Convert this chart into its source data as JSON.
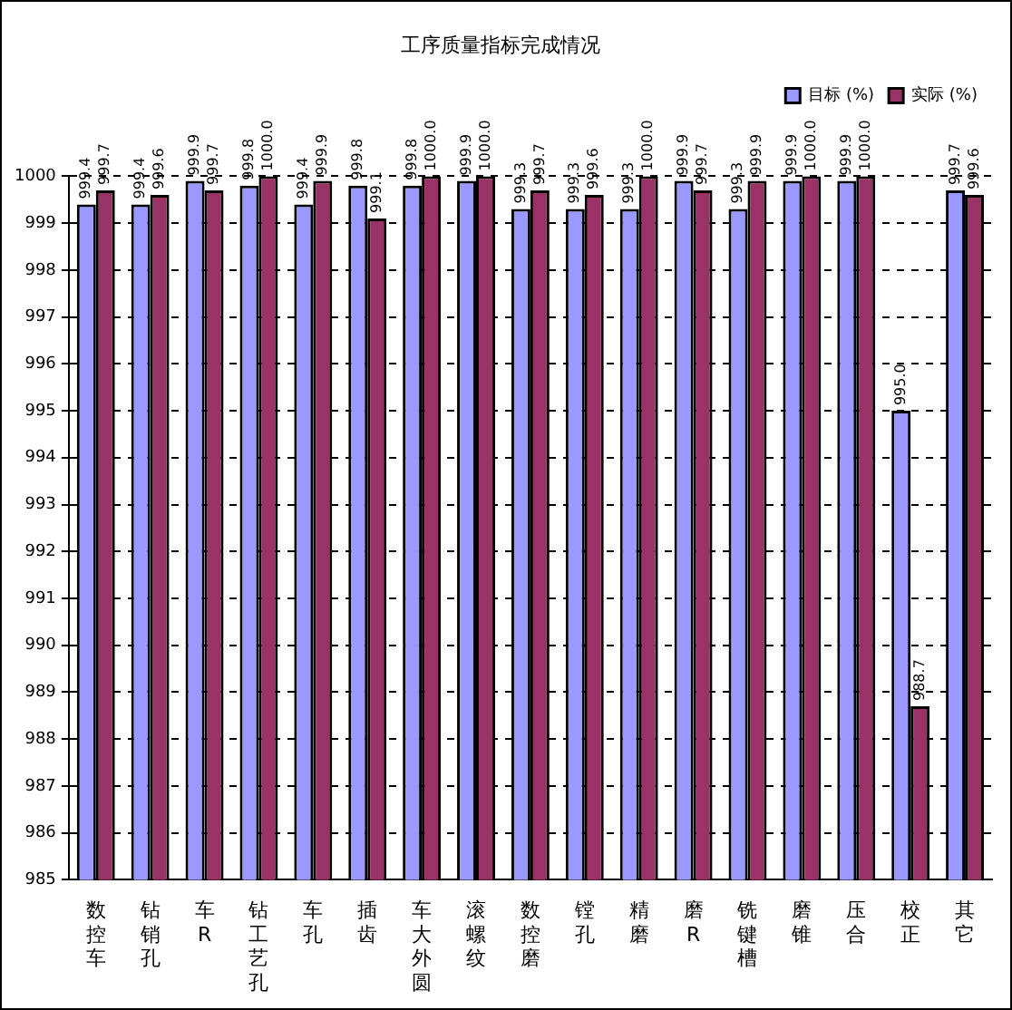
{
  "chart_data": {
    "type": "bar",
    "title": "工序质量指标完成情况",
    "categories": [
      "数控车",
      "钻销孔",
      "车R",
      "钻工艺孔",
      "车孔",
      "插齿",
      "车大外圆",
      "滚螺纹",
      "数控磨",
      "镗孔",
      "精磨",
      "磨R",
      "铣键槽",
      "磨锥",
      "压合",
      "校正",
      "其它"
    ],
    "series": [
      {
        "name": "目标 (%)",
        "color": "#9999ff",
        "values": [
          999.4,
          999.4,
          999.9,
          999.8,
          999.4,
          999.8,
          999.8,
          999.9,
          999.3,
          999.3,
          999.3,
          999.9,
          999.3,
          999.9,
          999.9,
          995.0,
          999.7
        ],
        "value_labels": [
          "999.4",
          "999.4",
          "999.9",
          "999.8",
          "999.4",
          "999.8",
          "999.8",
          "999.9",
          "999.3",
          "999.3",
          "999.3",
          "999.9",
          "999.3",
          "999.9",
          "999.9",
          "995.0",
          "999.7"
        ]
      },
      {
        "name": "实际 (%)",
        "color": "#993366",
        "values": [
          999.7,
          999.6,
          999.7,
          1000.0,
          999.9,
          999.1,
          1000.0,
          1000.0,
          999.7,
          999.6,
          1000.0,
          999.7,
          999.9,
          1000.0,
          1000.0,
          988.7,
          999.6
        ],
        "value_labels": [
          "999.7",
          "999.6",
          "999.7",
          "1000.0",
          "999.9",
          "999.1",
          "1000.0",
          "1000.0",
          "999.7",
          "999.6",
          "1000.0",
          "999.7",
          "999.9",
          "1000.0",
          "1000.0",
          "988.7",
          "999.6"
        ]
      }
    ],
    "ylim": [
      985,
      1000
    ],
    "yticks": [
      985,
      986,
      987,
      988,
      989,
      990,
      991,
      992,
      993,
      994,
      995,
      996,
      997,
      998,
      999,
      1000
    ],
    "grid": "y",
    "legend": "top right"
  }
}
